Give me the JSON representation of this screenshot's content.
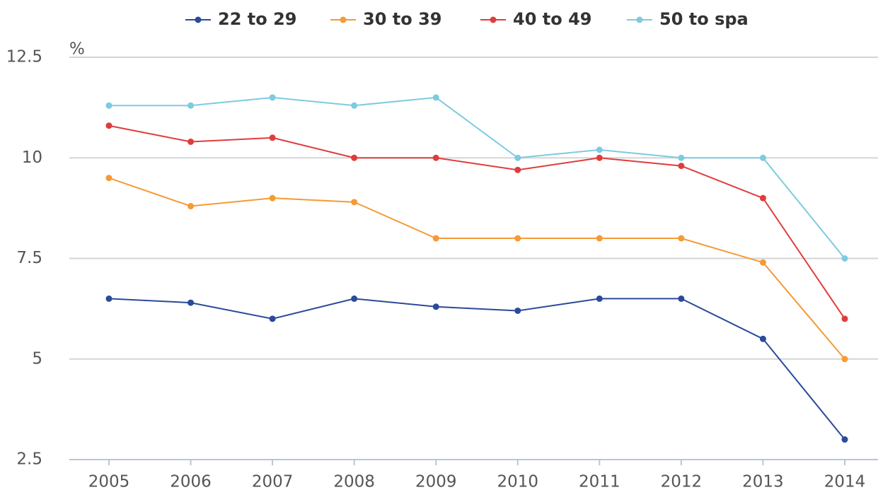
{
  "chart_data": {
    "type": "line",
    "y_unit": "%",
    "categories": [
      "2005",
      "2006",
      "2007",
      "2008",
      "2009",
      "2010",
      "2011",
      "2012",
      "2013",
      "2014"
    ],
    "series": [
      {
        "name": "22 to 29",
        "color": "#2b4a9a",
        "values": [
          6.5,
          6.4,
          6.0,
          6.5,
          6.3,
          6.2,
          6.5,
          6.5,
          5.5,
          3.0
        ]
      },
      {
        "name": "30 to 39",
        "color": "#f59a35",
        "values": [
          9.5,
          8.8,
          9.0,
          8.9,
          8.0,
          8.0,
          8.0,
          8.0,
          7.4,
          5.0
        ]
      },
      {
        "name": "40 to 49",
        "color": "#e03c3c",
        "values": [
          10.8,
          10.4,
          10.5,
          10.0,
          10.0,
          9.7,
          10.0,
          9.8,
          9.0,
          6.0
        ]
      },
      {
        "name": "50 to spa",
        "color": "#7ccbe0",
        "values": [
          11.3,
          11.3,
          11.5,
          11.3,
          11.5,
          10.0,
          10.2,
          10.0,
          10.0,
          7.5
        ]
      }
    ],
    "ylim": [
      2.5,
      12.5
    ],
    "yticks": [
      2.5,
      5,
      7.5,
      10,
      12.5
    ],
    "grid": true
  }
}
